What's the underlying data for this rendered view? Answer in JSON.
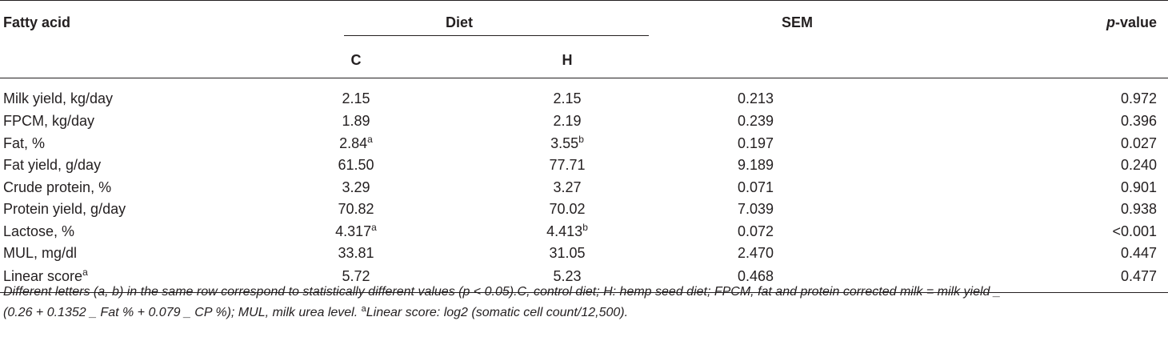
{
  "table": {
    "header": {
      "fatty_acid": "Fatty acid",
      "diet": "Diet",
      "sem": "SEM",
      "p_value_italic": "p",
      "p_value_rest": "-value",
      "col_c": "C",
      "col_h": "H"
    },
    "rows": [
      {
        "label": "Milk yield, kg/day",
        "c": "2.15",
        "c_sup": "",
        "h": "2.15",
        "h_sup": "",
        "sem": "0.213",
        "p": "0.972",
        "label_sup": ""
      },
      {
        "label": "FPCM, kg/day",
        "c": "1.89",
        "c_sup": "",
        "h": "2.19",
        "h_sup": "",
        "sem": "0.239",
        "p": "0.396",
        "label_sup": ""
      },
      {
        "label": "Fat, %",
        "c": "2.84",
        "c_sup": "a",
        "h": "3.55",
        "h_sup": "b",
        "sem": "0.197",
        "p": "0.027",
        "label_sup": ""
      },
      {
        "label": "Fat yield, g/day",
        "c": "61.50",
        "c_sup": "",
        "h": "77.71",
        "h_sup": "",
        "sem": "9.189",
        "p": "0.240",
        "label_sup": ""
      },
      {
        "label": "Crude protein, %",
        "c": "3.29",
        "c_sup": "",
        "h": "3.27",
        "h_sup": "",
        "sem": "0.071",
        "p": "0.901",
        "label_sup": ""
      },
      {
        "label": "Protein yield, g/day",
        "c": "70.82",
        "c_sup": "",
        "h": "70.02",
        "h_sup": "",
        "sem": "7.039",
        "p": "0.938",
        "label_sup": ""
      },
      {
        "label": "Lactose, %",
        "c": "4.317",
        "c_sup": "a",
        "h": "4.413",
        "h_sup": "b",
        "sem": "0.072",
        "p": "<0.001",
        "label_sup": ""
      },
      {
        "label": "MUL, mg/dl",
        "c": "33.81",
        "c_sup": "",
        "h": "31.05",
        "h_sup": "",
        "sem": "2.470",
        "p": "0.447",
        "label_sup": ""
      },
      {
        "label": "Linear score",
        "c": "5.72",
        "c_sup": "",
        "h": "5.23",
        "h_sup": "",
        "sem": "0.468",
        "p": "0.477",
        "label_sup": "a"
      }
    ]
  },
  "footnote": {
    "line1": "Different letters (a, b) in the same row correspond to statistically different values (p < 0.05).C, control diet; H: hemp seed diet; FPCM, fat and protein corrected milk = milk yield _",
    "line2_pre": "(0.26 + 0.1352 _ Fat % + 0.079 _ CP %); MUL, milk urea level. ",
    "line2_sup": "a",
    "line2_post": "Linear score: log2 (somatic cell count/12,500)."
  }
}
